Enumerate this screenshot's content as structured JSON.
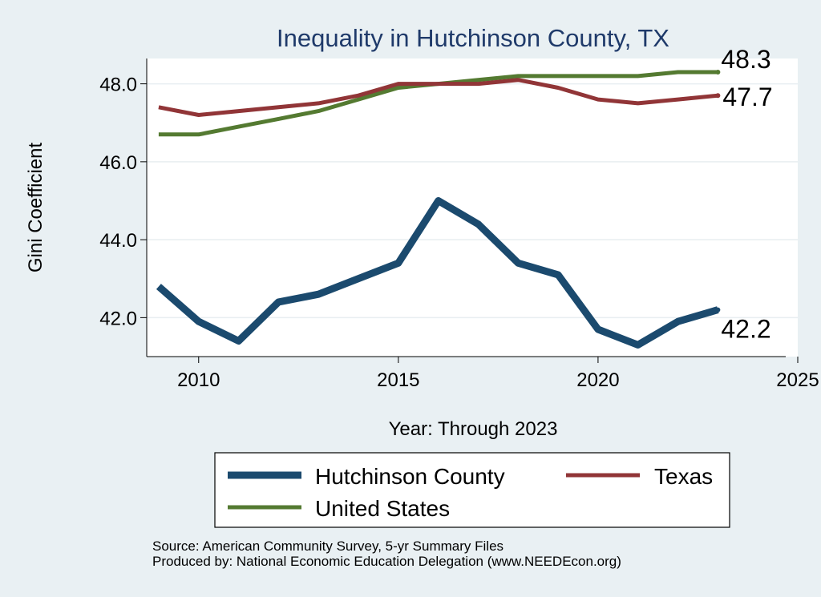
{
  "chart_data": {
    "type": "line",
    "title": "Inequality in Hutchinson County, TX",
    "xlabel": "Year: Through 2023",
    "ylabel": "Gini Coefficient",
    "xlim": [
      2008.7,
      2025
    ],
    "ylim": [
      41.0,
      48.65
    ],
    "x_ticks": [
      2010,
      2015,
      2020,
      2025
    ],
    "y_ticks": [
      42.0,
      44.0,
      46.0,
      48.0
    ],
    "y_tick_labels": [
      "42.0",
      "44.0",
      "46.0",
      "48.0"
    ],
    "grid": true,
    "legend_position": "bottom",
    "x": [
      2009,
      2010,
      2011,
      2012,
      2013,
      2014,
      2015,
      2016,
      2017,
      2018,
      2019,
      2020,
      2021,
      2022,
      2023
    ],
    "series": [
      {
        "name": "Hutchinson County",
        "color": "#1b4a6e",
        "values": [
          42.8,
          41.9,
          41.4,
          42.4,
          42.6,
          43.0,
          43.4,
          45.0,
          44.4,
          43.4,
          43.1,
          41.7,
          41.3,
          41.9,
          42.2
        ],
        "end_label": "42.2"
      },
      {
        "name": "Texas",
        "color": "#913537",
        "values": [
          47.4,
          47.2,
          47.3,
          47.4,
          47.5,
          47.7,
          48.0,
          48.0,
          48.0,
          48.1,
          47.9,
          47.6,
          47.5,
          47.6,
          47.7
        ],
        "end_label": "47.7"
      },
      {
        "name": "United States",
        "color": "#547a31",
        "values": [
          46.7,
          46.7,
          46.9,
          47.1,
          47.3,
          47.6,
          47.9,
          48.0,
          48.1,
          48.2,
          48.2,
          48.2,
          48.2,
          48.3,
          48.3
        ],
        "end_label": "48.3"
      }
    ]
  },
  "footer": {
    "source": "Source: American Community Survey, 5-yr Summary Files",
    "producer": "Produced by: National Economic Education Delegation (www.NEEDEcon.org)"
  }
}
